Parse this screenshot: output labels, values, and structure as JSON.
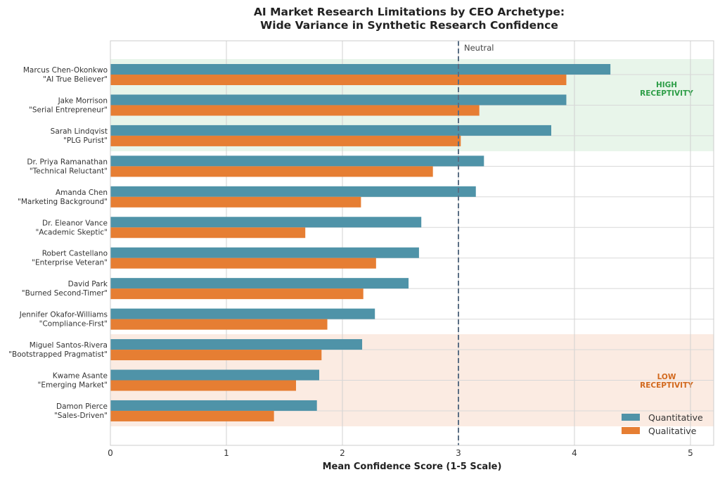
{
  "chart_data": {
    "type": "bar",
    "orientation": "horizontal",
    "title": "AI Market Research Limitations by CEO Archetype:",
    "subtitle": "Wide Variance in Synthetic Research Confidence",
    "xlabel": "Mean Confidence Score (1-5 Scale)",
    "ylabel": "",
    "xlim": [
      0,
      5.2
    ],
    "xticks": [
      0,
      1,
      2,
      3,
      4,
      5
    ],
    "grid": true,
    "categories": [
      {
        "name": "Marcus Chen-Okonkwo",
        "archetype": "\"AI True Believer\""
      },
      {
        "name": "Jake Morrison",
        "archetype": "\"Serial Entrepreneur\""
      },
      {
        "name": "Sarah Lindqvist",
        "archetype": "\"PLG Purist\""
      },
      {
        "name": "Dr. Priya Ramanathan",
        "archetype": "\"Technical Reluctant\""
      },
      {
        "name": "Amanda Chen",
        "archetype": "\"Marketing Background\""
      },
      {
        "name": "Dr. Eleanor Vance",
        "archetype": "\"Academic Skeptic\""
      },
      {
        "name": "Robert Castellano",
        "archetype": "\"Enterprise Veteran\""
      },
      {
        "name": "David Park",
        "archetype": "\"Burned Second-Timer\""
      },
      {
        "name": "Jennifer Okafor-Williams",
        "archetype": "\"Compliance-First\""
      },
      {
        "name": "Miguel Santos-Rivera",
        "archetype": "\"Bootstrapped Pragmatist\""
      },
      {
        "name": "Kwame Asante",
        "archetype": "\"Emerging Market\""
      },
      {
        "name": "Damon Pierce",
        "archetype": "\"Sales-Driven\""
      }
    ],
    "series": [
      {
        "name": "Quantitative",
        "color": "#4f93a8",
        "values": [
          4.31,
          3.93,
          3.8,
          3.22,
          3.15,
          2.68,
          2.66,
          2.57,
          2.28,
          2.17,
          1.8,
          1.78
        ]
      },
      {
        "name": "Qualitative",
        "color": "#e67e33",
        "values": [
          3.93,
          3.18,
          3.02,
          2.78,
          2.16,
          1.68,
          2.29,
          2.18,
          1.87,
          1.82,
          1.6,
          1.41
        ]
      }
    ],
    "reference_line": {
      "value": 3,
      "label": "Neutral",
      "color": "#5a6e84",
      "style": "dashed"
    },
    "bands": [
      {
        "label_line1": "HIGH",
        "label_line2": "RECEPTIVITY",
        "rows": [
          0,
          2
        ],
        "fill": "#e8f5ea",
        "text_color": "#2e9e48"
      },
      {
        "label_line1": "LOW",
        "label_line2": "RECEPTIVITY",
        "rows": [
          9,
          11
        ],
        "fill": "#fbebe2",
        "text_color": "#d2691e"
      }
    ],
    "legend": {
      "position": "bottom-right",
      "entries": [
        "Quantitative",
        "Qualitative"
      ]
    }
  }
}
